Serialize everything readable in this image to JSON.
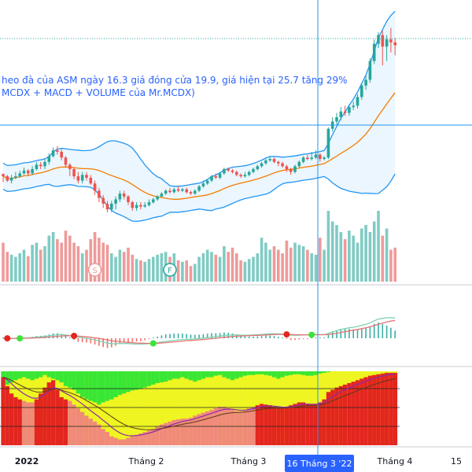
{
  "annotation": {
    "line1": "heo đà của ASM ngày 16.3 giá đóng cửa 19.9, giá hiện tại 25.7 tăng 29%",
    "line2": "MCDX + MACD + VOLUME của Mr.MCDX)",
    "color": "#2962ff"
  },
  "crosshair": {
    "date_label": "16 Tháng 3 '22",
    "label_bg": "#2962ff",
    "line_color": "#2196f3"
  },
  "colors": {
    "up": "#26a69a",
    "down": "#ef5350",
    "up_volume": "#80cbc4",
    "down_volume": "#ef9a9a",
    "bollinger": "#2196f3",
    "band_fill": "#e3f2fd",
    "ma": "#f57c00",
    "macd_line": "#7ed3b2",
    "signal_line": "#e57373",
    "mcdx_red": "#e32620",
    "mcdx_yellow": "#eef520",
    "mcdx_green": "#39e635",
    "mcdx_salmon": "#f08a7a"
  },
  "chart_data": {
    "type": "candlestick",
    "x_axis_labels": [
      "2022",
      "Tháng 2",
      "Tháng 3",
      "Tháng 4",
      "15"
    ],
    "current_price": 25.7,
    "signal_markers": [
      {
        "label": "S",
        "index": 22,
        "color": "#ef9a9a"
      },
      {
        "label": "F",
        "index": 40,
        "color": "#26a69a"
      }
    ],
    "candles": [
      [
        16.75,
        16.6,
        16.8,
        16.2
      ],
      [
        16.6,
        16.3,
        16.7,
        16.2
      ],
      [
        16.3,
        16.5,
        16.7,
        16.1
      ],
      [
        16.5,
        16.6,
        16.9,
        16.4
      ],
      [
        16.6,
        16.8,
        17.0,
        16.5
      ],
      [
        16.8,
        17.0,
        17.2,
        16.7
      ],
      [
        17.0,
        16.8,
        17.1,
        16.6
      ],
      [
        16.8,
        17.1,
        17.3,
        16.7
      ],
      [
        17.1,
        17.4,
        17.6,
        17.0
      ],
      [
        17.4,
        17.3,
        17.6,
        17.1
      ],
      [
        17.3,
        17.6,
        17.8,
        17.1
      ],
      [
        17.6,
        18.0,
        18.2,
        17.4
      ],
      [
        18.0,
        18.4,
        18.6,
        17.9
      ],
      [
        18.4,
        18.3,
        18.7,
        18.1
      ],
      [
        18.3,
        17.9,
        18.5,
        17.7
      ],
      [
        17.9,
        17.4,
        18.0,
        17.2
      ],
      [
        17.4,
        17.1,
        17.5,
        16.6
      ],
      [
        17.1,
        16.6,
        17.2,
        16.4
      ],
      [
        16.6,
        16.3,
        16.9,
        16.1
      ],
      [
        16.3,
        16.7,
        16.9,
        16.1
      ],
      [
        16.7,
        16.5,
        16.9,
        16.3
      ],
      [
        16.5,
        16.1,
        16.7,
        16.0
      ],
      [
        16.1,
        15.6,
        16.3,
        15.3
      ],
      [
        15.6,
        15.1,
        15.8,
        14.8
      ],
      [
        15.1,
        14.7,
        15.3,
        14.4
      ],
      [
        14.7,
        14.3,
        14.9,
        14.1
      ],
      [
        14.3,
        14.7,
        14.9,
        14.1
      ],
      [
        14.7,
        15.0,
        15.2,
        14.3
      ],
      [
        15.0,
        15.4,
        15.6,
        14.8
      ],
      [
        15.4,
        15.2,
        15.6,
        15.0
      ],
      [
        15.2,
        14.8,
        15.3,
        14.6
      ],
      [
        14.8,
        14.4,
        14.9,
        14.2
      ],
      [
        14.4,
        14.6,
        14.8,
        14.2
      ],
      [
        14.6,
        14.5,
        14.8,
        14.3
      ],
      [
        14.5,
        14.6,
        14.8,
        14.4
      ],
      [
        14.6,
        14.8,
        15.0,
        14.5
      ],
      [
        14.8,
        15.0,
        15.1,
        14.7
      ],
      [
        15.0,
        15.2,
        15.3,
        14.9
      ],
      [
        15.2,
        15.4,
        15.5,
        15.1
      ],
      [
        15.4,
        15.6,
        15.7,
        15.3
      ],
      [
        15.6,
        15.5,
        15.8,
        15.4
      ],
      [
        15.5,
        15.7,
        15.8,
        15.4
      ],
      [
        15.7,
        15.6,
        15.9,
        15.5
      ],
      [
        15.6,
        15.7,
        15.8,
        15.5
      ],
      [
        15.7,
        15.5,
        15.8,
        15.4
      ],
      [
        15.5,
        15.4,
        15.6,
        15.3
      ],
      [
        15.4,
        15.6,
        15.7,
        15.3
      ],
      [
        15.6,
        15.9,
        16.0,
        15.5
      ],
      [
        15.9,
        16.1,
        16.3,
        15.8
      ],
      [
        16.1,
        16.3,
        16.4,
        16.0
      ],
      [
        16.3,
        16.6,
        16.7,
        16.2
      ],
      [
        16.6,
        16.5,
        16.8,
        16.4
      ],
      [
        16.5,
        16.8,
        16.9,
        16.4
      ],
      [
        16.8,
        17.1,
        17.2,
        16.7
      ],
      [
        17.1,
        17.0,
        17.2,
        16.9
      ],
      [
        17.0,
        16.9,
        17.1,
        16.8
      ],
      [
        16.9,
        16.7,
        17.0,
        16.6
      ],
      [
        16.7,
        16.6,
        16.8,
        16.5
      ],
      [
        16.6,
        16.7,
        16.9,
        16.5
      ],
      [
        16.7,
        16.9,
        17.0,
        16.6
      ],
      [
        16.9,
        17.1,
        17.2,
        16.8
      ],
      [
        17.1,
        17.3,
        17.4,
        17.0
      ],
      [
        17.3,
        17.5,
        17.6,
        17.2
      ],
      [
        17.5,
        17.7,
        17.8,
        17.4
      ],
      [
        17.7,
        17.8,
        18.0,
        17.6
      ],
      [
        17.8,
        17.6,
        17.9,
        17.5
      ],
      [
        17.6,
        17.5,
        17.7,
        17.3
      ],
      [
        17.5,
        17.3,
        17.6,
        17.2
      ],
      [
        17.3,
        17.1,
        17.4,
        16.9
      ],
      [
        17.1,
        16.9,
        17.2,
        16.7
      ],
      [
        16.9,
        17.3,
        17.4,
        16.8
      ],
      [
        17.3,
        17.6,
        17.7,
        17.2
      ],
      [
        17.6,
        17.9,
        18.0,
        17.5
      ],
      [
        17.9,
        17.8,
        18.1,
        17.7
      ],
      [
        17.8,
        17.9,
        18.3,
        17.7
      ],
      [
        17.9,
        18.1,
        18.4,
        17.8
      ],
      [
        18.1,
        17.8,
        18.2,
        17.6
      ],
      [
        17.8,
        17.9,
        18.0,
        17.7
      ],
      [
        17.9,
        19.9,
        20.0,
        17.8
      ],
      [
        19.9,
        20.4,
        20.7,
        19.7
      ],
      [
        20.4,
        20.7,
        21.0,
        20.2
      ],
      [
        20.7,
        21.1,
        21.4,
        20.5
      ],
      [
        21.1,
        21.0,
        21.5,
        20.8
      ],
      [
        21.0,
        21.4,
        21.6,
        20.8
      ],
      [
        21.4,
        21.5,
        21.8,
        21.2
      ],
      [
        21.5,
        22.1,
        22.3,
        21.3
      ],
      [
        22.1,
        22.9,
        23.1,
        21.9
      ],
      [
        22.9,
        23.3,
        23.6,
        22.6
      ],
      [
        23.3,
        24.6,
        24.8,
        23.1
      ],
      [
        24.6,
        25.8,
        26.1,
        24.4
      ],
      [
        25.8,
        26.4,
        26.6,
        25.5
      ],
      [
        26.4,
        25.6,
        26.7,
        24.3
      ],
      [
        25.6,
        26.1,
        26.4,
        24.6
      ],
      [
        26.1,
        25.9,
        26.9,
        25.2
      ],
      [
        25.9,
        25.7,
        26.2,
        25.0
      ]
    ],
    "volume": [
      0.55,
      0.42,
      0.38,
      0.35,
      0.4,
      0.45,
      0.36,
      0.52,
      0.55,
      0.45,
      0.5,
      0.65,
      0.7,
      0.6,
      0.55,
      0.72,
      0.65,
      0.55,
      0.5,
      0.4,
      0.45,
      0.6,
      0.7,
      0.62,
      0.55,
      0.52,
      0.4,
      0.35,
      0.45,
      0.42,
      0.48,
      0.38,
      0.32,
      0.3,
      0.28,
      0.32,
      0.35,
      0.38,
      0.4,
      0.42,
      0.35,
      0.4,
      0.3,
      0.28,
      0.3,
      0.22,
      0.25,
      0.35,
      0.4,
      0.45,
      0.42,
      0.38,
      0.35,
      0.5,
      0.42,
      0.48,
      0.4,
      0.3,
      0.28,
      0.32,
      0.35,
      0.4,
      0.62,
      0.55,
      0.45,
      0.5,
      0.45,
      0.4,
      0.58,
      0.48,
      0.55,
      0.52,
      0.5,
      0.45,
      0.4,
      0.38,
      0.62,
      0.45,
      1.0,
      0.85,
      0.8,
      0.7,
      0.6,
      0.72,
      0.65,
      0.55,
      0.75,
      0.8,
      0.7,
      0.85,
      1.0,
      0.65,
      0.75,
      0.45,
      0.48
    ],
    "mcdx_red": [
      0.92,
      0.8,
      0.7,
      0.65,
      0.62,
      0.6,
      0.58,
      0.58,
      0.62,
      0.7,
      0.78,
      0.85,
      0.88,
      0.75,
      0.65,
      0.62,
      0.6,
      0.55,
      0.5,
      0.45,
      0.4,
      0.36,
      0.32,
      0.28,
      0.22,
      0.18,
      0.12,
      0.1,
      0.08,
      0.08,
      0.1,
      0.12,
      0.14,
      0.16,
      0.18,
      0.2,
      0.22,
      0.25,
      0.28,
      0.3,
      0.32,
      0.34,
      0.35,
      0.36,
      0.36,
      0.37,
      0.4,
      0.42,
      0.44,
      0.46,
      0.48,
      0.5,
      0.52,
      0.52,
      0.5,
      0.48,
      0.46,
      0.46,
      0.48,
      0.5,
      0.52,
      0.54,
      0.56,
      0.55,
      0.54,
      0.52,
      0.5,
      0.5,
      0.52,
      0.54,
      0.56,
      0.58,
      0.58,
      0.56,
      0.55,
      0.55,
      0.58,
      0.62,
      0.72,
      0.75,
      0.78,
      0.8,
      0.82,
      0.84,
      0.86,
      0.88,
      0.9,
      0.92,
      0.94,
      0.95,
      0.96,
      0.97,
      0.98,
      0.98,
      0.98
    ],
    "mcdx_green": [
      0.2,
      0.18,
      0.15,
      0.12,
      0.1,
      0.08,
      0.1,
      0.12,
      0.1,
      0.08,
      0.05,
      0.08,
      0.1,
      0.12,
      0.15,
      0.2,
      0.22,
      0.25,
      0.3,
      0.35,
      0.38,
      0.4,
      0.42,
      0.45,
      0.42,
      0.4,
      0.38,
      0.35,
      0.32,
      0.3,
      0.28,
      0.26,
      0.25,
      0.24,
      0.22,
      0.2,
      0.18,
      0.16,
      0.15,
      0.14,
      0.12,
      0.1,
      0.1,
      0.08,
      0.1,
      0.12,
      0.14,
      0.12,
      0.1,
      0.08,
      0.08,
      0.06,
      0.05,
      0.08,
      0.1,
      0.12,
      0.1,
      0.08,
      0.06,
      0.05,
      0.05,
      0.04,
      0.04,
      0.05,
      0.06,
      0.08,
      0.1,
      0.08,
      0.06,
      0.05,
      0.04,
      0.04,
      0.05,
      0.06,
      0.06,
      0.05,
      0.03,
      0.02,
      0.01,
      0.0,
      0.0,
      0.0,
      0.0,
      0.0,
      0.0,
      0.0,
      0.0,
      0.0,
      0.0,
      0.0,
      0.0,
      0.0,
      0.0,
      0.0,
      0.0
    ]
  }
}
